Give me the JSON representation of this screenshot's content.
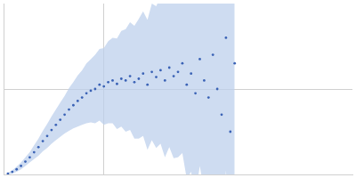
{
  "chart_data": {
    "type": "scatter",
    "x": [
      0.05,
      0.1,
      0.15,
      0.2,
      0.25,
      0.3,
      0.35,
      0.4,
      0.45,
      0.5,
      0.55,
      0.6,
      0.65,
      0.7,
      0.75,
      0.8,
      0.85,
      0.9,
      0.95,
      1.0,
      1.05,
      1.1,
      1.15,
      1.2,
      1.25,
      1.3,
      1.35,
      1.4,
      1.45,
      1.5,
      1.55,
      1.6,
      1.65,
      1.7,
      1.75,
      1.8,
      1.85,
      1.9,
      1.95,
      2.0,
      2.05,
      2.1,
      2.15,
      2.2,
      2.25,
      2.3,
      2.35,
      2.4,
      2.45,
      2.5,
      2.55,
      2.6,
      2.65
    ],
    "values": [
      0.01,
      0.03,
      0.06,
      0.1,
      0.15,
      0.2,
      0.26,
      0.32,
      0.39,
      0.45,
      0.52,
      0.58,
      0.64,
      0.7,
      0.76,
      0.81,
      0.86,
      0.9,
      0.95,
      0.98,
      1.0,
      1.05,
      1.03,
      1.08,
      1.1,
      1.06,
      1.12,
      1.1,
      1.15,
      1.08,
      1.12,
      1.18,
      1.05,
      1.2,
      1.14,
      1.22,
      1.1,
      1.25,
      1.15,
      1.2,
      1.3,
      1.05,
      1.18,
      0.95,
      1.35,
      1.1,
      0.9,
      1.4,
      1.0,
      0.7,
      1.6,
      0.5,
      1.3
    ],
    "errors": [
      0.01,
      0.02,
      0.03,
      0.04,
      0.05,
      0.06,
      0.08,
      0.1,
      0.12,
      0.14,
      0.16,
      0.18,
      0.2,
      0.22,
      0.25,
      0.27,
      0.3,
      0.32,
      0.35,
      0.37,
      0.4,
      0.42,
      0.45,
      0.48,
      0.5,
      0.53,
      0.56,
      0.6,
      0.63,
      0.66,
      0.7,
      0.73,
      0.76,
      0.8,
      0.83,
      0.86,
      0.9,
      0.93,
      0.96,
      1.0,
      1.05,
      1.1,
      1.15,
      1.2,
      1.25,
      1.3,
      1.35,
      1.4,
      1.45,
      1.5,
      1.55,
      1.6,
      1.65
    ],
    "color": "#3a62b5",
    "marker": "circle",
    "xlim": [
      0,
      4
    ],
    "ylim": [
      0,
      2
    ],
    "xticks": [
      1.15
    ],
    "yticks": [
      1
    ],
    "grid": true,
    "tick_labels": false
  }
}
